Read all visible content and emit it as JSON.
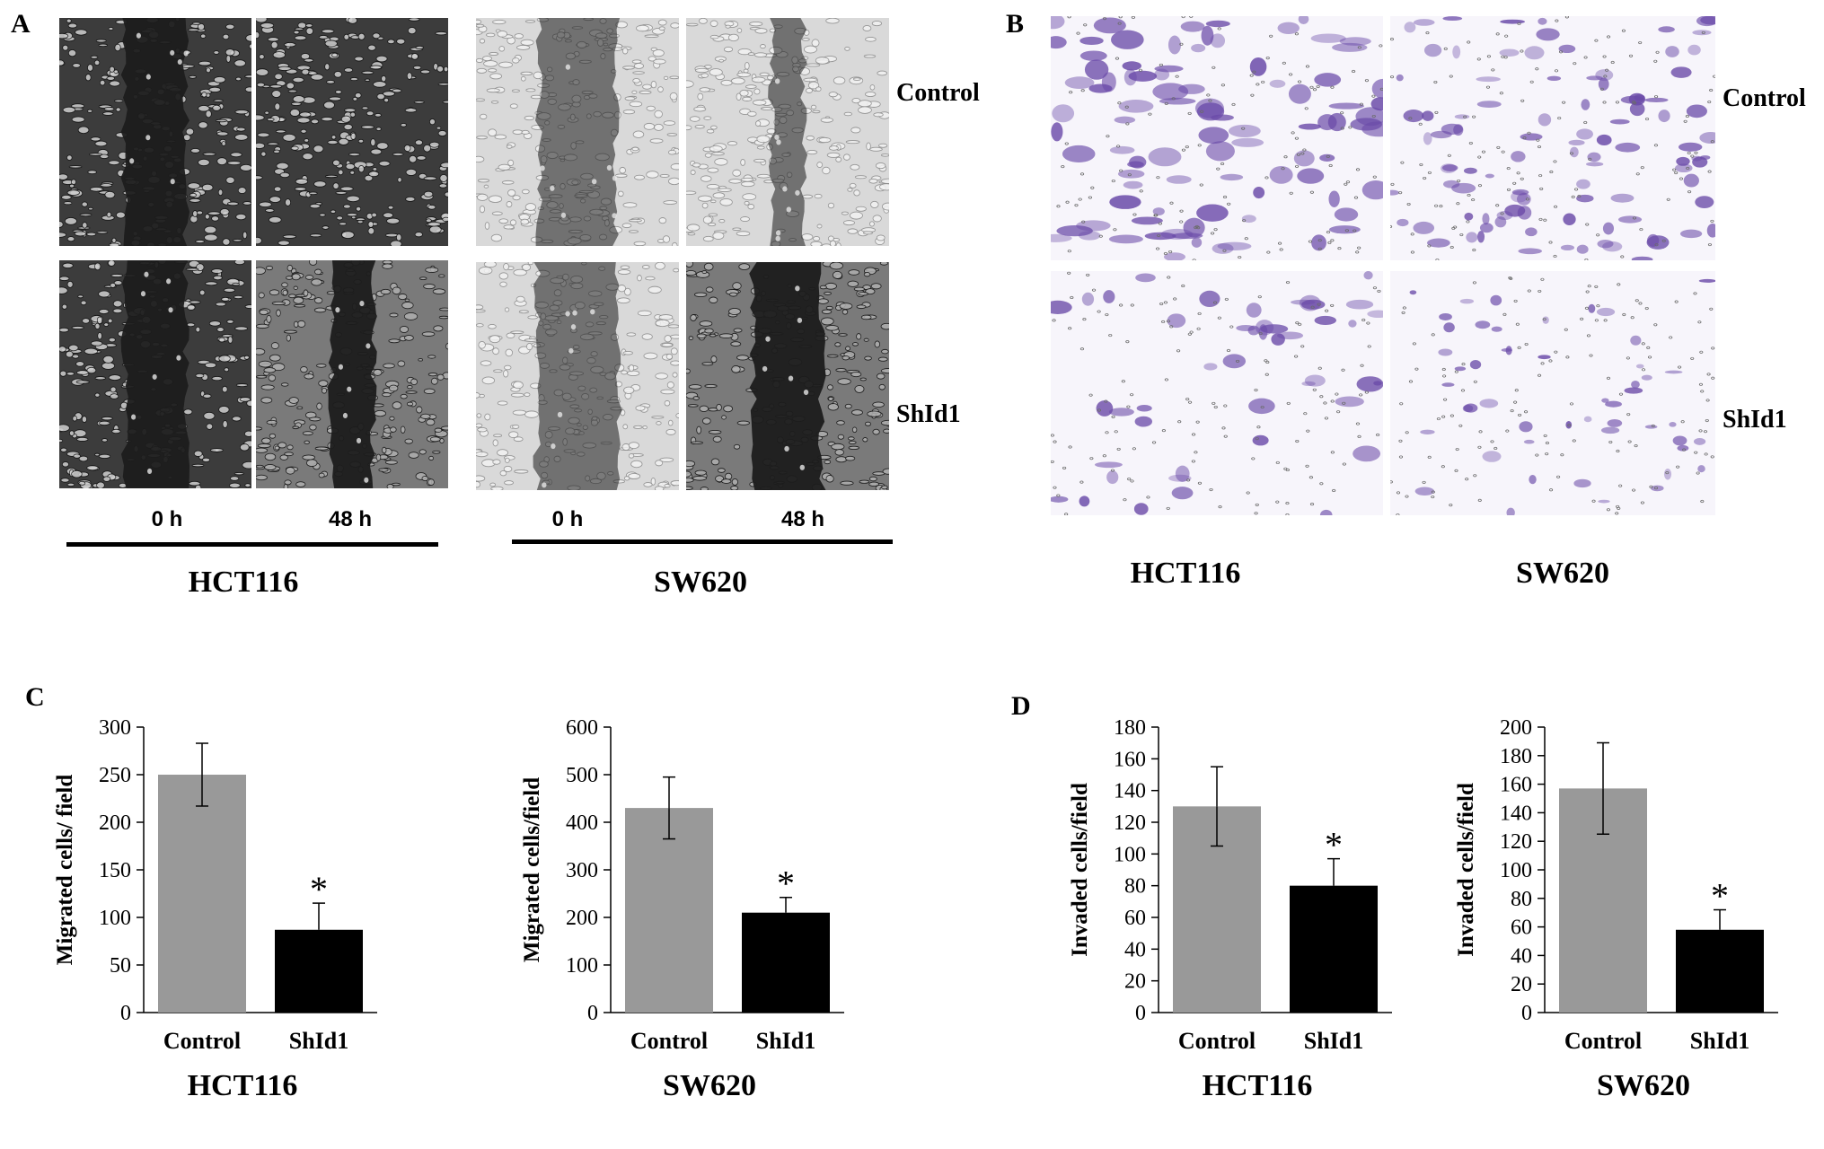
{
  "panels": {
    "a": "A",
    "b": "B",
    "c": "C",
    "d": "D"
  },
  "wound": {
    "row_labels": [
      "Control",
      "ShId1"
    ],
    "time_labels": [
      "0 h",
      "48 h",
      "0 h",
      "48 h"
    ],
    "cell_lines": [
      "HCT116",
      "SW620"
    ]
  },
  "transwell": {
    "row_labels": [
      "Control",
      "ShId1"
    ],
    "cell_lines": [
      "HCT116",
      "SW620"
    ]
  },
  "colors": {
    "control_bar": "#999999",
    "shid1_bar": "#000000",
    "crystal_violet": "#6a4aa8",
    "wound_dark": "#1c1c1c"
  },
  "chart_data": [
    {
      "type": "bar",
      "title": "HCT116",
      "ylabel": "Migrated cells/ field",
      "categories": [
        "Control",
        "ShId1"
      ],
      "values": [
        250,
        87
      ],
      "errors": [
        33,
        28
      ],
      "ylim": [
        0,
        300
      ],
      "yticks": [
        "0",
        "50",
        "100",
        "150",
        "200",
        "250",
        "300"
      ],
      "significance": [
        "",
        "*"
      ]
    },
    {
      "type": "bar",
      "title": "SW620",
      "ylabel": "Migrated cells/field",
      "categories": [
        "Control",
        "ShId1"
      ],
      "values": [
        430,
        210
      ],
      "errors": [
        65,
        32
      ],
      "ylim": [
        0,
        600
      ],
      "yticks": [
        "0",
        "100",
        "200",
        "300",
        "400",
        "500",
        "600"
      ],
      "significance": [
        "",
        "*"
      ]
    },
    {
      "type": "bar",
      "title": "HCT116",
      "ylabel": "Invaded cells/field",
      "categories": [
        "Control",
        "ShId1"
      ],
      "values": [
        130,
        80
      ],
      "errors": [
        25,
        17
      ],
      "ylim": [
        0,
        180
      ],
      "yticks": [
        "0",
        "20",
        "40",
        "60",
        "80",
        "100",
        "120",
        "140",
        "160",
        "180"
      ],
      "significance": [
        "",
        "*"
      ]
    },
    {
      "type": "bar",
      "title": "SW620",
      "ylabel": "Invaded cells/field",
      "categories": [
        "Control",
        "ShId1"
      ],
      "values": [
        157,
        58
      ],
      "errors": [
        32,
        14
      ],
      "ylim": [
        0,
        200
      ],
      "yticks": [
        "0",
        "20",
        "40",
        "60",
        "80",
        "100",
        "120",
        "140",
        "160",
        "180",
        "200"
      ],
      "significance": [
        "",
        "*"
      ]
    }
  ]
}
